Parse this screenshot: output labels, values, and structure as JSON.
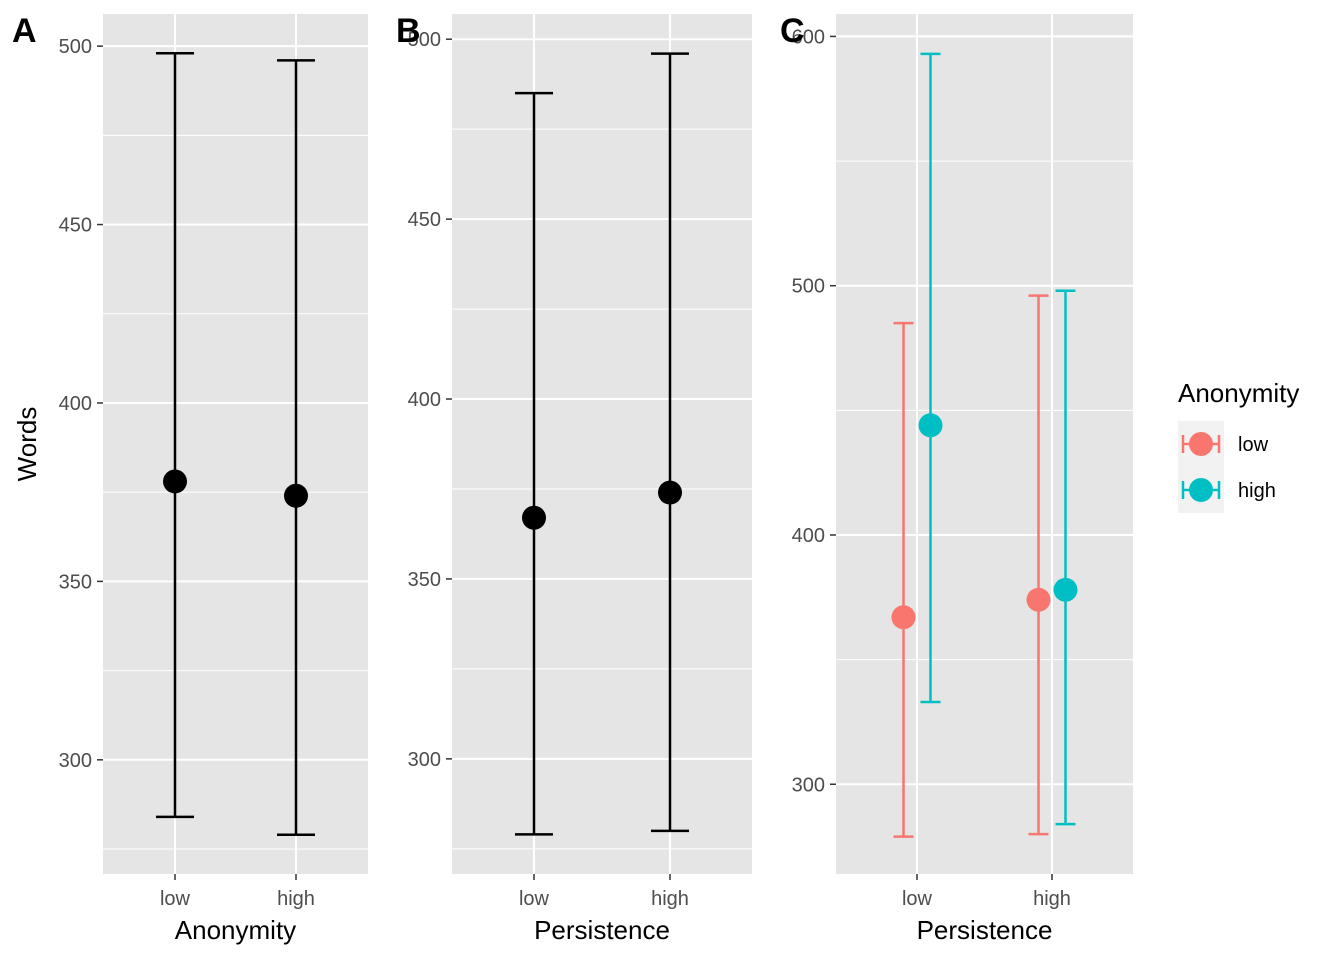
{
  "chart_data": [
    {
      "type": "scatter",
      "tag": "A",
      "xlabel": "Anonymity",
      "ylabel": "Words",
      "categories": [
        "low",
        "high"
      ],
      "ylim": [
        268,
        509
      ],
      "yticks": [
        300,
        350,
        400,
        450,
        500
      ],
      "series": [
        {
          "color": "#000000",
          "points": [
            {
              "x": "low",
              "y": 378,
              "ymin": 284,
              "ymax": 498
            },
            {
              "x": "high",
              "y": 374,
              "ymin": 279,
              "ymax": 496
            }
          ]
        }
      ]
    },
    {
      "type": "scatter",
      "tag": "B",
      "xlabel": "Persistence",
      "ylabel": "",
      "categories": [
        "low",
        "high"
      ],
      "ylim": [
        268,
        507
      ],
      "yticks": [
        300,
        350,
        400,
        450,
        500
      ],
      "series": [
        {
          "color": "#000000",
          "points": [
            {
              "x": "low",
              "y": 367,
              "ymin": 279,
              "ymax": 485
            },
            {
              "x": "high",
              "y": 374,
              "ymin": 280,
              "ymax": 496
            }
          ]
        }
      ]
    },
    {
      "type": "scatter",
      "tag": "C",
      "xlabel": "Persistence",
      "ylabel": "",
      "categories": [
        "low",
        "high"
      ],
      "ylim": [
        264,
        609
      ],
      "yticks": [
        300,
        400,
        500,
        600
      ],
      "dodge": true,
      "legend": {
        "title": "Anonymity",
        "position": "right"
      },
      "series": [
        {
          "name": "low",
          "color": "#F8766D",
          "points": [
            {
              "x": "low",
              "y": 367,
              "ymin": 279,
              "ymax": 485
            },
            {
              "x": "high",
              "y": 374,
              "ymin": 280,
              "ymax": 496
            }
          ]
        },
        {
          "name": "high",
          "color": "#00BFC4",
          "points": [
            {
              "x": "low",
              "y": 444,
              "ymin": 333,
              "ymax": 593
            },
            {
              "x": "high",
              "y": 378,
              "ymin": 284,
              "ymax": 498
            }
          ]
        }
      ]
    }
  ]
}
